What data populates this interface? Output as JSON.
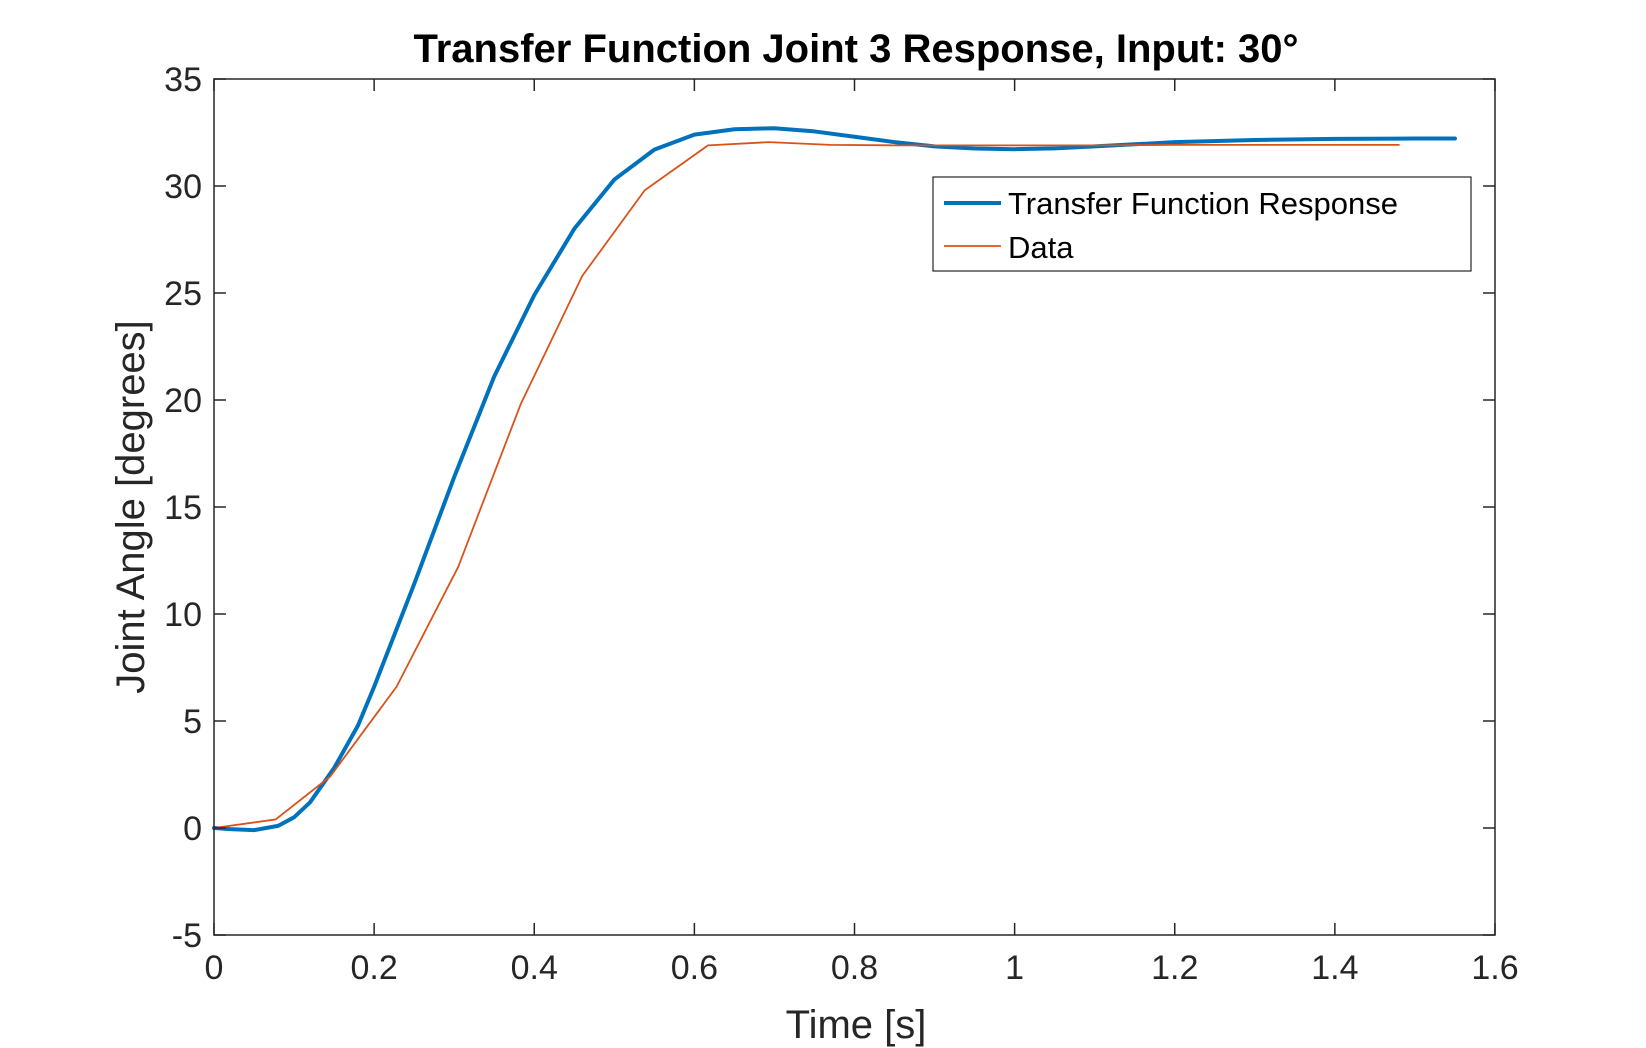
{
  "chart_data": {
    "type": "line",
    "title": "Transfer Function Joint 3 Response, Input: 30°",
    "xlabel": "Time [s]",
    "ylabel": "Joint Angle [degrees]",
    "xlim": [
      0,
      1.6
    ],
    "ylim": [
      -5,
      35
    ],
    "xticks": [
      0,
      0.2,
      0.4,
      0.6,
      0.8,
      1,
      1.2,
      1.4,
      1.6
    ],
    "xtick_labels": [
      "0",
      "0.2",
      "0.4",
      "0.6",
      "0.8",
      "1",
      "1.2",
      "1.4",
      "1.6"
    ],
    "yticks": [
      -5,
      0,
      5,
      10,
      15,
      20,
      25,
      30,
      35
    ],
    "ytick_labels": [
      "-5",
      "0",
      "5",
      "10",
      "15",
      "20",
      "25",
      "30",
      "35"
    ],
    "grid": false,
    "box": true,
    "legend_position": "top-right",
    "series": [
      {
        "name": "Transfer Function Response",
        "color": "#0072BD",
        "style": "thick",
        "x": [
          0,
          0.02,
          0.05,
          0.08,
          0.1,
          0.12,
          0.15,
          0.18,
          0.2,
          0.25,
          0.3,
          0.35,
          0.4,
          0.45,
          0.5,
          0.55,
          0.6,
          0.65,
          0.7,
          0.75,
          0.8,
          0.85,
          0.9,
          0.95,
          1.0,
          1.05,
          1.1,
          1.15,
          1.2,
          1.3,
          1.4,
          1.5,
          1.55
        ],
        "y": [
          0,
          -0.05,
          -0.1,
          0.1,
          0.5,
          1.2,
          2.8,
          4.8,
          6.6,
          11.4,
          16.4,
          21.1,
          24.9,
          28.0,
          30.3,
          31.7,
          32.4,
          32.65,
          32.7,
          32.55,
          32.3,
          32.05,
          31.85,
          31.75,
          31.72,
          31.76,
          31.85,
          31.95,
          32.05,
          32.15,
          32.2,
          32.22,
          32.22
        ]
      },
      {
        "name": "Data",
        "color": "#D95319",
        "style": "thin",
        "x": [
          0,
          0.077,
          0.145,
          0.228,
          0.305,
          0.383,
          0.46,
          0.538,
          0.617,
          0.693,
          0.77,
          0.85,
          0.93,
          1.0,
          1.1,
          1.2,
          1.3,
          1.4,
          1.48
        ],
        "y": [
          0,
          0.4,
          2.4,
          6.6,
          12.2,
          19.8,
          25.8,
          29.8,
          31.9,
          32.05,
          31.92,
          31.9,
          31.9,
          31.9,
          31.9,
          31.92,
          31.92,
          31.92,
          31.92
        ]
      }
    ]
  }
}
